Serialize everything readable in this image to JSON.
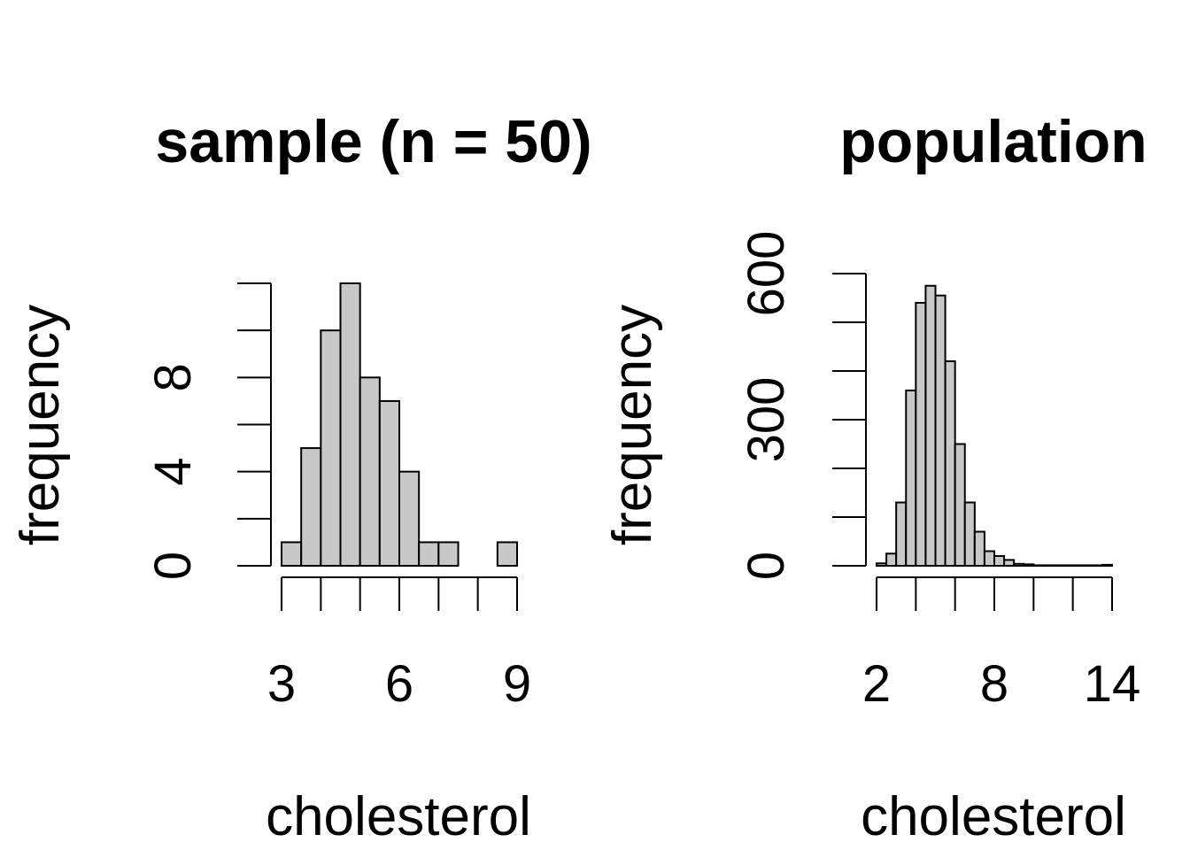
{
  "chart_data": [
    {
      "type": "bar",
      "title": "sample (n = 50)",
      "xlabel": "cholesterol",
      "ylabel": "frequency",
      "bar_fill": "#c8c8c8",
      "bin_edges": [
        3,
        3.5,
        4,
        4.5,
        5,
        5.5,
        6,
        6.5,
        7,
        7.5,
        8,
        8.5,
        9
      ],
      "values": [
        1,
        5,
        10,
        12,
        8,
        7,
        4,
        1,
        1,
        0,
        0,
        1
      ],
      "xlim": [
        3,
        9
      ],
      "ylim": [
        0,
        12
      ],
      "x_ticks": [
        3,
        4,
        5,
        6,
        7,
        8,
        9
      ],
      "x_tick_labels": [
        "3",
        "6",
        "9"
      ],
      "y_ticks": [
        0,
        2,
        4,
        6,
        8,
        10,
        12
      ],
      "y_tick_labels": [
        "0",
        "4",
        "8"
      ]
    },
    {
      "type": "bar",
      "title": "population",
      "xlabel": "cholesterol",
      "ylabel": "frequency",
      "bar_fill": "#c8c8c8",
      "bin_edges": [
        2,
        2.5,
        3,
        3.5,
        4,
        4.5,
        5,
        5.5,
        6,
        6.5,
        7,
        7.5,
        8,
        8.5,
        9,
        9.5,
        10,
        10.5,
        11,
        11.5,
        12,
        12.5,
        13,
        13.5,
        14
      ],
      "values": [
        5,
        25,
        130,
        360,
        540,
        575,
        555,
        420,
        250,
        130,
        70,
        30,
        20,
        12,
        4,
        3,
        1,
        1,
        1,
        1,
        1,
        1,
        1,
        2
      ],
      "xlim": [
        2,
        14
      ],
      "ylim": [
        0,
        600
      ],
      "x_ticks": [
        2,
        4,
        6,
        8,
        10,
        12,
        14
      ],
      "x_tick_labels": [
        "2",
        "8",
        "14"
      ],
      "y_ticks": [
        0,
        100,
        200,
        300,
        400,
        500,
        600
      ],
      "y_tick_labels": [
        "0",
        "300",
        "600"
      ]
    }
  ]
}
